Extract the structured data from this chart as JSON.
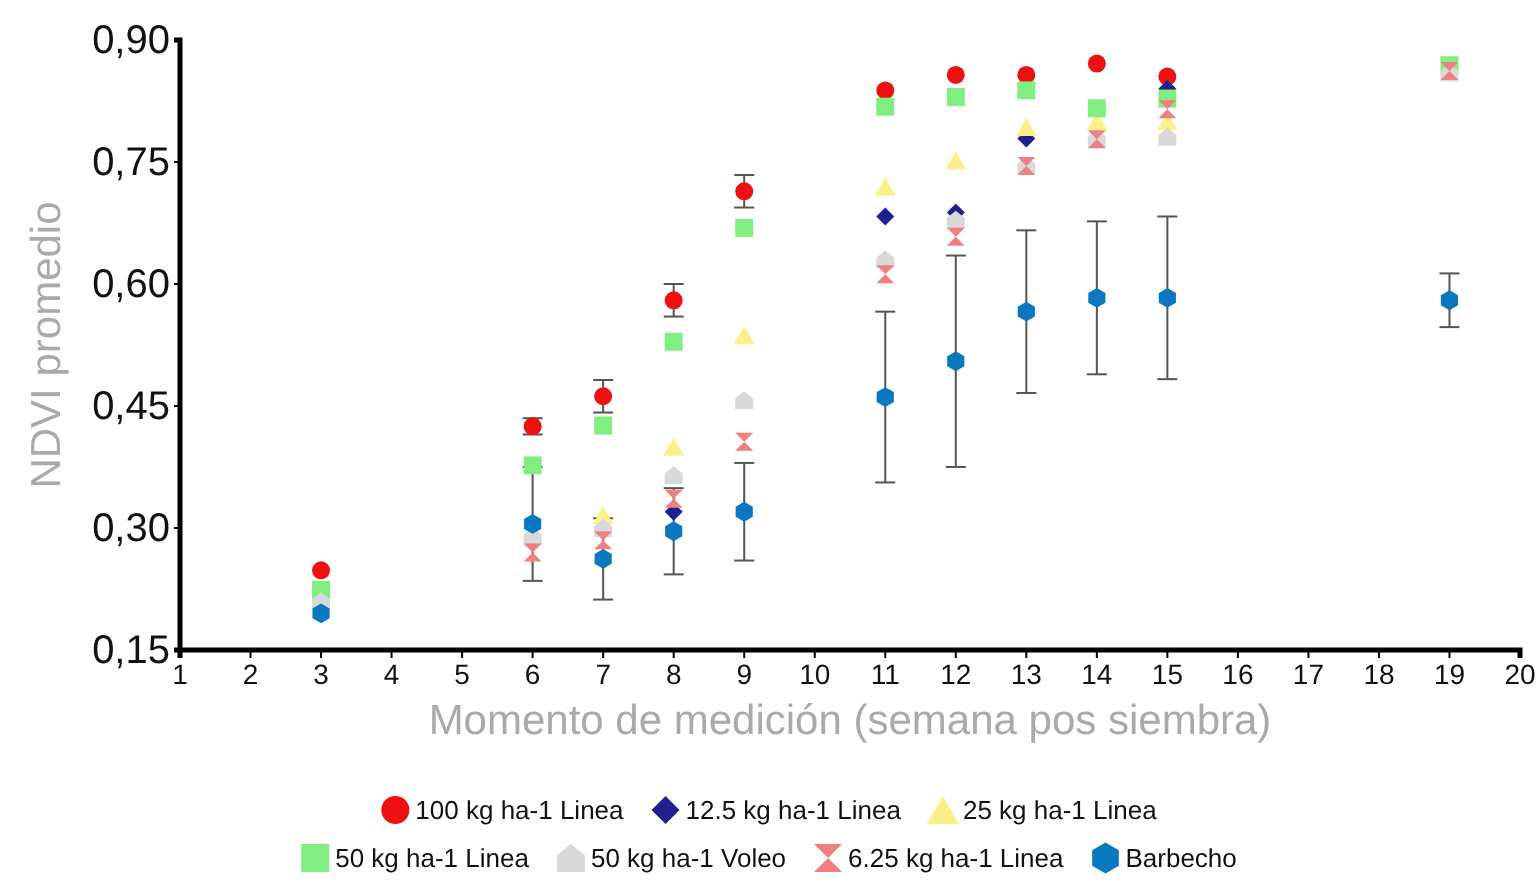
{
  "chart_data": {
    "type": "scatter",
    "xlabel": "Momento de medición (semana pos siembra)",
    "ylabel": "NDVI promedio",
    "xlim": [
      1,
      20
    ],
    "xticks": [
      1,
      2,
      3,
      4,
      5,
      6,
      7,
      8,
      9,
      10,
      11,
      12,
      13,
      14,
      15,
      16,
      17,
      18,
      19,
      20
    ],
    "ylim": [
      0.15,
      0.9
    ],
    "yticks": [
      {
        "value": 0.15,
        "label": "0,15"
      },
      {
        "value": 0.3,
        "label": "0,30"
      },
      {
        "value": 0.45,
        "label": "0,45"
      },
      {
        "value": 0.6,
        "label": "0,60"
      },
      {
        "value": 0.75,
        "label": "0,75"
      },
      {
        "value": 0.9,
        "label": "0,90"
      }
    ],
    "x": [
      3,
      6,
      7,
      8,
      9,
      11,
      12,
      13,
      14,
      15,
      19
    ],
    "grid": false,
    "legend": "bottom",
    "series": [
      {
        "name": "100 kg ha-1 Linea",
        "color": "#ee1111",
        "marker": "circle",
        "values": [
          0.248,
          0.425,
          0.462,
          0.58,
          0.714,
          0.838,
          0.857,
          0.857,
          0.871,
          0.855,
          null
        ],
        "errors": [
          null,
          0.01,
          0.02,
          0.02,
          0.02,
          null,
          null,
          null,
          null,
          null,
          null
        ]
      },
      {
        "name": "12.5 kg ha-1 Linea",
        "color": "#1f1f8f",
        "marker": "diamond",
        "values": [
          null,
          null,
          null,
          0.32,
          null,
          0.683,
          0.688,
          0.779,
          null,
          0.84,
          null
        ]
      },
      {
        "name": "25 kg ha-1 Linea",
        "color": "#fdf08a",
        "marker": "triangle",
        "values": [
          null,
          null,
          0.316,
          0.4,
          0.537,
          0.72,
          0.752,
          0.793,
          0.8,
          0.8,
          null
        ]
      },
      {
        "name": "50 kg ha-1 Linea",
        "color": "#80ee80",
        "marker": "square",
        "values": [
          0.224,
          0.377,
          0.426,
          0.529,
          0.669,
          0.818,
          0.83,
          0.838,
          0.816,
          0.828,
          0.869
        ]
      },
      {
        "name": "50 kg ha-1 Voleo",
        "color": "#d9d9d9",
        "values": [
          0.21,
          0.29,
          0.3,
          0.365,
          0.457,
          0.63,
          0.679,
          0.746,
          0.779,
          0.781,
          0.86
        ]
      },
      {
        "name": "6.25 kg ha-1 Linea",
        "color": "#f08080",
        "values": [
          null,
          0.27,
          0.285,
          0.336,
          0.406,
          0.612,
          0.658,
          0.745,
          0.778,
          0.815,
          0.862
        ]
      },
      {
        "name": "Barbecho",
        "color": "#0a78bf",
        "values": [
          0.195,
          0.305,
          0.262,
          0.296,
          0.32,
          0.461,
          0.505,
          0.566,
          0.583,
          0.583,
          0.58
        ],
        "errors": [
          null,
          0.07,
          0.05,
          0.053,
          0.06,
          0.105,
          0.13,
          0.1,
          0.094,
          0.1,
          0.033
        ]
      }
    ]
  }
}
